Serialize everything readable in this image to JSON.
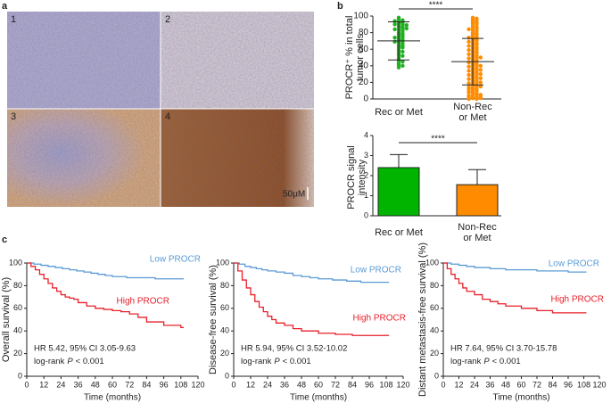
{
  "panels": [
    "a",
    "b",
    "c"
  ],
  "micrographs": {
    "labels": [
      "1",
      "2",
      "3",
      "4"
    ],
    "scale_bar": "50μM"
  },
  "chart_data": [
    {
      "type": "dotplot",
      "ylabel": "PROCR⁺ % in total\ntumor cells",
      "categories": [
        "Rec or Met",
        "Non-Rec\nor Met"
      ],
      "colors": [
        "#22b022",
        "#ff8c00"
      ],
      "values": [
        [
          98,
          96,
          95,
          94,
          93,
          92,
          91,
          90,
          90,
          89,
          88,
          87,
          86,
          85,
          84,
          83,
          82,
          80,
          79,
          78,
          77,
          76,
          75,
          74,
          73,
          72,
          71,
          70,
          69,
          68,
          67,
          65,
          64,
          63,
          62,
          60,
          58,
          57,
          55,
          53,
          52,
          50,
          48,
          46,
          45,
          43,
          41,
          40,
          38,
          85
        ],
        [
          98,
          97,
          95,
          94,
          93,
          92,
          91,
          90,
          88,
          87,
          86,
          85,
          84,
          83,
          82,
          80,
          79,
          78,
          77,
          76,
          75,
          74,
          73,
          72,
          71,
          70,
          69,
          68,
          67,
          66,
          65,
          64,
          63,
          62,
          61,
          60,
          59,
          58,
          57,
          56,
          55,
          54,
          53,
          52,
          51,
          50,
          49,
          48,
          47,
          46,
          45,
          44,
          43,
          42,
          41,
          40,
          39,
          38,
          37,
          36,
          35,
          34,
          33,
          32,
          31,
          30,
          29,
          28,
          27,
          26,
          25,
          24,
          23,
          22,
          21,
          20,
          19,
          18,
          17,
          16,
          15,
          14,
          13,
          12,
          11,
          10,
          9,
          8,
          7,
          6,
          5,
          4,
          3,
          2,
          1,
          0,
          0,
          1,
          2,
          3,
          5,
          8,
          12,
          15,
          20,
          25,
          30,
          35,
          40,
          50
        ]
      ],
      "means": [
        70,
        45
      ],
      "sds": [
        23,
        28
      ],
      "significance": "****",
      "ylim": [
        0,
        100
      ],
      "yticks": [
        0,
        20,
        40,
        60,
        80,
        100
      ]
    },
    {
      "type": "bar",
      "ylabel": "PROCR signal\nintensity",
      "categories": [
        "Rec or Met",
        "Non-Rec\nor Met"
      ],
      "colors": [
        "#00b400",
        "#ff8c00"
      ],
      "values": [
        2.4,
        1.55
      ],
      "errors": [
        0.65,
        0.75
      ],
      "significance": "****",
      "ylim": [
        0,
        4
      ],
      "yticks": [
        0,
        1,
        2,
        3,
        4
      ]
    },
    {
      "type": "step",
      "ylabel": "Overall survival (%)",
      "xlabel": "Time (months)",
      "xlim": [
        0,
        120
      ],
      "xticks": [
        0,
        12,
        24,
        36,
        48,
        60,
        72,
        84,
        96,
        108,
        120
      ],
      "ylim": [
        0,
        100
      ],
      "yticks": [
        0,
        20,
        40,
        60,
        80,
        100
      ],
      "annotation": "HR 5.42, 95% CI 3.05-9.63",
      "pvalue": {
        "prefix": "log-rank",
        "symbol": "P",
        "text": "< 0.001"
      },
      "series": [
        {
          "name": "Low PROCR",
          "color": "#5b9bd5",
          "x": [
            0,
            5,
            10,
            15,
            20,
            25,
            30,
            35,
            40,
            45,
            50,
            55,
            60,
            65,
            70,
            80,
            90,
            100,
            110
          ],
          "values": [
            100,
            99,
            98,
            97,
            96,
            95,
            94,
            93,
            92,
            91,
            90,
            89,
            88,
            88,
            87,
            87,
            86,
            86,
            86
          ]
        },
        {
          "name": "High PROCR",
          "color": "#e8202a",
          "x": [
            0,
            3,
            6,
            9,
            12,
            15,
            18,
            21,
            24,
            27,
            30,
            33,
            36,
            42,
            48,
            54,
            60,
            66,
            72,
            78,
            84,
            96,
            108,
            110
          ],
          "values": [
            100,
            97,
            94,
            90,
            86,
            82,
            78,
            75,
            72,
            70,
            69,
            68,
            65,
            62,
            60,
            59,
            58,
            57,
            55,
            52,
            48,
            45,
            43,
            43
          ]
        }
      ]
    },
    {
      "type": "step",
      "ylabel": "Disease-free survival (%)",
      "xlabel": "Time (months)",
      "xlim": [
        0,
        120
      ],
      "xticks": [
        0,
        12,
        24,
        36,
        48,
        60,
        72,
        84,
        96,
        108,
        120
      ],
      "ylim": [
        0,
        100
      ],
      "yticks": [
        0,
        20,
        40,
        60,
        80,
        100
      ],
      "annotation": "HR 5.94, 95% CI 3.52-10.02",
      "pvalue": {
        "prefix": "log-rank",
        "symbol": "P",
        "text": "< 0.001"
      },
      "series": [
        {
          "name": "Low PROCR",
          "color": "#5b9bd5",
          "x": [
            0,
            4,
            8,
            12,
            16,
            20,
            24,
            30,
            36,
            42,
            48,
            54,
            60,
            70,
            80,
            90,
            100,
            110
          ],
          "values": [
            100,
            99,
            97,
            96,
            95,
            94,
            93,
            92,
            91,
            89,
            88,
            87,
            86,
            85,
            84,
            83,
            83,
            83
          ]
        },
        {
          "name": "High PROCR",
          "color": "#e8202a",
          "x": [
            0,
            3,
            6,
            9,
            12,
            15,
            18,
            21,
            24,
            27,
            30,
            36,
            42,
            48,
            60,
            72,
            84,
            110
          ],
          "values": [
            100,
            93,
            85,
            78,
            72,
            66,
            61,
            57,
            53,
            50,
            47,
            45,
            42,
            40,
            38,
            37,
            36,
            36
          ]
        }
      ]
    },
    {
      "type": "step",
      "ylabel": "Distant metastasis-free survival (%)",
      "xlabel": "Time (months)",
      "xlim": [
        0,
        120
      ],
      "xticks": [
        0,
        12,
        24,
        36,
        48,
        60,
        72,
        84,
        96,
        108,
        120
      ],
      "ylim": [
        0,
        100
      ],
      "yticks": [
        0,
        20,
        40,
        60,
        80,
        100
      ],
      "annotation": "HR 7.64, 95% CI 3.70-15.78",
      "pvalue": {
        "prefix": "log-rank",
        "symbol": "P",
        "text": "< 0.001"
      },
      "series": [
        {
          "name": "Low PROCR",
          "color": "#5b9bd5",
          "x": [
            0,
            6,
            12,
            18,
            24,
            30,
            36,
            48,
            60,
            72,
            84,
            96,
            110
          ],
          "values": [
            100,
            99,
            98,
            97,
            96,
            96,
            95,
            94,
            94,
            93,
            93,
            92,
            92
          ]
        },
        {
          "name": "High PROCR",
          "color": "#e8202a",
          "x": [
            0,
            3,
            6,
            9,
            12,
            15,
            18,
            24,
            30,
            36,
            42,
            48,
            60,
            72,
            84,
            110
          ],
          "values": [
            100,
            95,
            90,
            86,
            82,
            78,
            75,
            72,
            68,
            66,
            64,
            62,
            60,
            58,
            56,
            56
          ]
        }
      ]
    }
  ]
}
